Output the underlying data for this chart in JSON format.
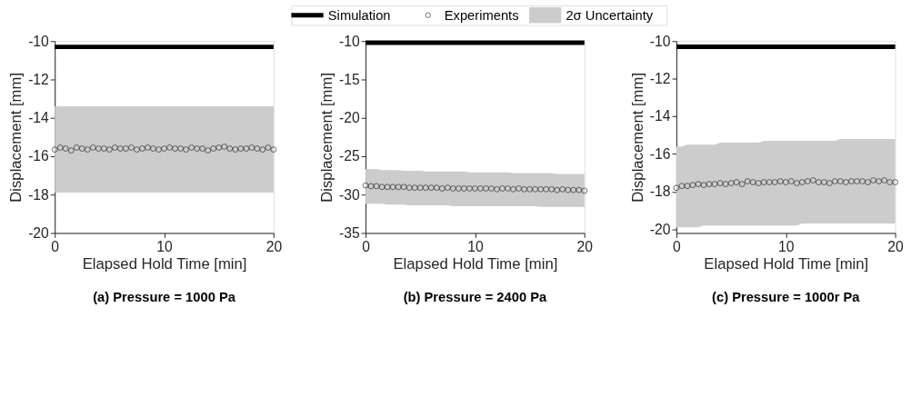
{
  "chart_data": [
    {
      "type": "line",
      "title": "(a) Pressure = 1000 Pa",
      "xlabel": "Elapsed Hold Time [min]",
      "ylabel": "Displacement [mm]",
      "xlim": [
        0,
        20
      ],
      "xticks": [
        0,
        10,
        20
      ],
      "ylim": [
        -20,
        -10
      ],
      "yticks": [
        -20,
        -18,
        -16,
        -14,
        -12,
        -10
      ],
      "grid": false,
      "legend": "top",
      "annotations": [
        "2σ Uncertainty"
      ],
      "series": [
        {
          "name": "Simulation",
          "color": "#000000",
          "x": [
            0,
            20
          ],
          "values": [
            -10.3,
            -10.3
          ]
        },
        {
          "name": "Experiments",
          "type": "scatter",
          "marker": "circle",
          "color": "#000000",
          "x": [
            0,
            0.5,
            1,
            1.5,
            2,
            2.5,
            3,
            3.5,
            4,
            4.5,
            5,
            5.5,
            6,
            6.5,
            7,
            7.5,
            8,
            8.5,
            9,
            9.5,
            10,
            10.5,
            11,
            11.5,
            12,
            12.5,
            13,
            13.5,
            14,
            14.5,
            15,
            15.5,
            16,
            16.5,
            17,
            17.5,
            18,
            18.5,
            19,
            19.5,
            20
          ],
          "values": [
            -15.65,
            -15.55,
            -15.6,
            -15.7,
            -15.55,
            -15.6,
            -15.65,
            -15.55,
            -15.6,
            -15.6,
            -15.65,
            -15.55,
            -15.6,
            -15.6,
            -15.55,
            -15.65,
            -15.6,
            -15.55,
            -15.6,
            -15.65,
            -15.6,
            -15.55,
            -15.6,
            -15.6,
            -15.65,
            -15.55,
            -15.6,
            -15.6,
            -15.7,
            -15.6,
            -15.55,
            -15.5,
            -15.6,
            -15.65,
            -15.6,
            -15.6,
            -15.55,
            -15.6,
            -15.65,
            -15.55,
            -15.65
          ],
          "upper": [
            -13.4,
            -13.4,
            -13.4,
            -13.4,
            -13.4,
            -13.4,
            -13.4,
            -13.4,
            -13.4,
            -13.4,
            -13.4,
            -13.4,
            -13.4,
            -13.4,
            -13.4,
            -13.4,
            -13.4,
            -13.4,
            -13.4,
            -13.4,
            -13.4,
            -13.4,
            -13.4,
            -13.4,
            -13.4,
            -13.4,
            -13.4,
            -13.4,
            -13.4,
            -13.4,
            -13.4,
            -13.4,
            -13.4,
            -13.4,
            -13.4,
            -13.4,
            -13.4,
            -13.4,
            -13.4,
            -13.4,
            -13.4
          ],
          "lower": [
            -17.9,
            -17.9,
            -17.9,
            -17.9,
            -17.9,
            -17.9,
            -17.9,
            -17.9,
            -17.9,
            -17.9,
            -17.9,
            -17.9,
            -17.9,
            -17.9,
            -17.9,
            -17.9,
            -17.9,
            -17.9,
            -17.9,
            -17.9,
            -17.9,
            -17.9,
            -17.9,
            -17.9,
            -17.9,
            -17.9,
            -17.9,
            -17.9,
            -17.9,
            -17.9,
            -17.9,
            -17.9,
            -17.9,
            -17.9,
            -17.9,
            -17.9,
            -17.9,
            -17.9,
            -17.9,
            -17.9,
            -17.9
          ]
        }
      ]
    },
    {
      "type": "line",
      "title": "(b) Pressure = 2400 Pa",
      "xlabel": "Elapsed Hold Time [min]",
      "ylabel": "Displacement [mm]",
      "xlim": [
        0,
        20
      ],
      "xticks": [
        0,
        10,
        20
      ],
      "ylim": [
        -35,
        -10
      ],
      "yticks": [
        -35,
        -30,
        -25,
        -20,
        -15,
        -10
      ],
      "grid": false,
      "series": [
        {
          "color": "#000000",
          "x": [
            0,
            20
          ],
          "values": [
            -10.2,
            -10.2
          ]
        },
        {
          "type": "scatter",
          "marker": "circle",
          "color": "#000000",
          "x": [
            0,
            0.5,
            1,
            1.5,
            2,
            2.5,
            3,
            3.5,
            4,
            4.5,
            5,
            5.5,
            6,
            6.5,
            7,
            7.5,
            8,
            8.5,
            9,
            9.5,
            10,
            10.5,
            11,
            11.5,
            12,
            12.5,
            13,
            13.5,
            14,
            14.5,
            15,
            15.5,
            16,
            16.5,
            17,
            17.5,
            18,
            18.5,
            19,
            19.5,
            20
          ],
          "values": [
            -28.8,
            -28.9,
            -28.9,
            -29.0,
            -29.0,
            -29.0,
            -29.0,
            -29.0,
            -29.1,
            -29.1,
            -29.1,
            -29.1,
            -29.1,
            -29.1,
            -29.2,
            -29.1,
            -29.2,
            -29.2,
            -29.2,
            -29.2,
            -29.2,
            -29.2,
            -29.2,
            -29.2,
            -29.3,
            -29.2,
            -29.2,
            -29.3,
            -29.2,
            -29.3,
            -29.3,
            -29.3,
            -29.3,
            -29.3,
            -29.3,
            -29.4,
            -29.3,
            -29.4,
            -29.4,
            -29.4,
            -29.5
          ],
          "upper": [
            -26.7,
            -26.7,
            -26.7,
            -26.8,
            -26.8,
            -26.8,
            -26.8,
            -26.9,
            -26.9,
            -26.9,
            -26.9,
            -27.0,
            -27.0,
            -27.0,
            -27.0,
            -27.0,
            -27.0,
            -27.0,
            -27.0,
            -27.1,
            -27.1,
            -27.1,
            -27.1,
            -27.1,
            -27.1,
            -27.1,
            -27.1,
            -27.2,
            -27.2,
            -27.2,
            -27.2,
            -27.2,
            -27.2,
            -27.2,
            -27.2,
            -27.3,
            -27.3,
            -27.3,
            -27.3,
            -27.3,
            -27.3
          ],
          "lower": [
            -31.2,
            -31.2,
            -31.2,
            -31.2,
            -31.3,
            -31.3,
            -31.3,
            -31.3,
            -31.4,
            -31.4,
            -31.4,
            -31.4,
            -31.4,
            -31.4,
            -31.4,
            -31.4,
            -31.5,
            -31.5,
            -31.5,
            -31.5,
            -31.5,
            -31.5,
            -31.5,
            -31.5,
            -31.5,
            -31.5,
            -31.5,
            -31.5,
            -31.5,
            -31.5,
            -31.5,
            -31.5,
            -31.6,
            -31.6,
            -31.6,
            -31.6,
            -31.6,
            -31.6,
            -31.6,
            -31.6,
            -31.6
          ]
        }
      ]
    },
    {
      "type": "line",
      "title": "(c) Pressure = 1000r Pa",
      "xlabel": "Elapsed Hold Time [min]",
      "ylabel": "Displacement [mm]",
      "xlim": [
        0,
        20
      ],
      "xticks": [
        0,
        10,
        20
      ],
      "ylim": [
        -20.2,
        -10
      ],
      "yticks": [
        -20,
        -18,
        -16,
        -14,
        -12,
        -10
      ],
      "grid": false,
      "series": [
        {
          "color": "#000000",
          "x": [
            0,
            20
          ],
          "values": [
            -10.3,
            -10.3
          ]
        },
        {
          "type": "scatter",
          "marker": "circle",
          "color": "#000000",
          "x": [
            0,
            0.5,
            1,
            1.5,
            2,
            2.5,
            3,
            3.5,
            4,
            4.5,
            5,
            5.5,
            6,
            6.5,
            7,
            7.5,
            8,
            8.5,
            9,
            9.5,
            10,
            10.5,
            11,
            11.5,
            12,
            12.5,
            13,
            13.5,
            14,
            14.5,
            15,
            15.5,
            16,
            16.5,
            17,
            17.5,
            18,
            18.5,
            19,
            19.5,
            20
          ],
          "values": [
            -17.8,
            -17.7,
            -17.7,
            -17.65,
            -17.6,
            -17.65,
            -17.6,
            -17.6,
            -17.55,
            -17.6,
            -17.55,
            -17.5,
            -17.6,
            -17.45,
            -17.5,
            -17.55,
            -17.5,
            -17.5,
            -17.5,
            -17.45,
            -17.5,
            -17.45,
            -17.55,
            -17.5,
            -17.45,
            -17.4,
            -17.5,
            -17.5,
            -17.55,
            -17.45,
            -17.45,
            -17.5,
            -17.45,
            -17.45,
            -17.45,
            -17.5,
            -17.4,
            -17.45,
            -17.4,
            -17.5,
            -17.5
          ],
          "upper": [
            -15.6,
            -15.6,
            -15.5,
            -15.5,
            -15.5,
            -15.5,
            -15.5,
            -15.5,
            -15.4,
            -15.4,
            -15.4,
            -15.4,
            -15.4,
            -15.4,
            -15.4,
            -15.4,
            -15.3,
            -15.3,
            -15.3,
            -15.3,
            -15.3,
            -15.3,
            -15.3,
            -15.3,
            -15.3,
            -15.3,
            -15.3,
            -15.3,
            -15.3,
            -15.3,
            -15.2,
            -15.2,
            -15.2,
            -15.2,
            -15.2,
            -15.2,
            -15.2,
            -15.2,
            -15.2,
            -15.2,
            -15.2
          ],
          "lower": [
            -19.9,
            -19.9,
            -19.9,
            -19.9,
            -19.9,
            -19.8,
            -19.8,
            -19.8,
            -19.8,
            -19.8,
            -19.8,
            -19.8,
            -19.8,
            -19.8,
            -19.8,
            -19.8,
            -19.8,
            -19.8,
            -19.8,
            -19.8,
            -19.8,
            -19.8,
            -19.8,
            -19.7,
            -19.7,
            -19.7,
            -19.7,
            -19.7,
            -19.7,
            -19.7,
            -19.7,
            -19.7,
            -19.7,
            -19.7,
            -19.7,
            -19.7,
            -19.7,
            -19.7,
            -19.7,
            -19.7,
            -19.7
          ]
        }
      ]
    }
  ]
}
